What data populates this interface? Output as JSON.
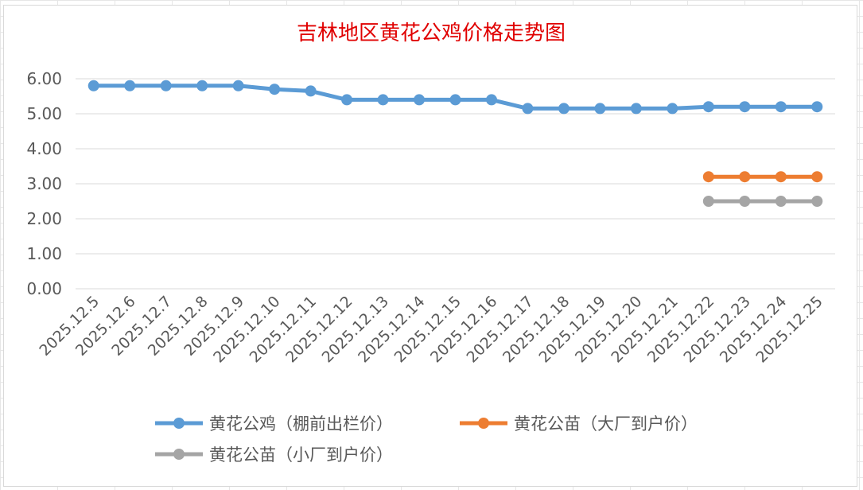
{
  "chart_data": {
    "type": "line",
    "title": "吉林地区黄花公鸡价格走势图",
    "xlabel": "",
    "ylabel": "",
    "ylim": [
      0,
      6
    ],
    "yticks": [
      "0.00",
      "1.00",
      "2.00",
      "3.00",
      "4.00",
      "5.00",
      "6.00"
    ],
    "grid": true,
    "legend_position": "bottom",
    "categories": [
      "2025.12.5",
      "2025.12.6",
      "2025.12.7",
      "2025.12.8",
      "2025.12.9",
      "2025.12.10",
      "2025.12.11",
      "2025.12.12",
      "2025.12.13",
      "2025.12.14",
      "2025.12.15",
      "2025.12.16",
      "2025.12.17",
      "2025.12.18",
      "2025.12.19",
      "2025.12.20",
      "2025.12.21",
      "2025.12.22",
      "2025.12.23",
      "2025.12.24",
      "2025.12.25"
    ],
    "series": [
      {
        "name": "黄花公鸡（棚前出栏价）",
        "color": "#5B9BD5",
        "values": [
          5.8,
          5.8,
          5.8,
          5.8,
          5.8,
          5.7,
          5.65,
          5.4,
          5.4,
          5.4,
          5.4,
          5.4,
          5.15,
          5.15,
          5.15,
          5.15,
          5.15,
          5.2,
          5.2,
          5.2,
          5.2
        ]
      },
      {
        "name": "黄花公苗（大厂到户价）",
        "color": "#ED7D31",
        "values": [
          null,
          null,
          null,
          null,
          null,
          null,
          null,
          null,
          null,
          null,
          null,
          null,
          null,
          null,
          null,
          null,
          null,
          3.2,
          3.2,
          3.2,
          3.2
        ]
      },
      {
        "name": "黄花公苗（小厂到户价）",
        "color": "#A5A5A5",
        "values": [
          null,
          null,
          null,
          null,
          null,
          null,
          null,
          null,
          null,
          null,
          null,
          null,
          null,
          null,
          null,
          null,
          null,
          2.5,
          2.5,
          2.5,
          2.5
        ]
      }
    ]
  }
}
